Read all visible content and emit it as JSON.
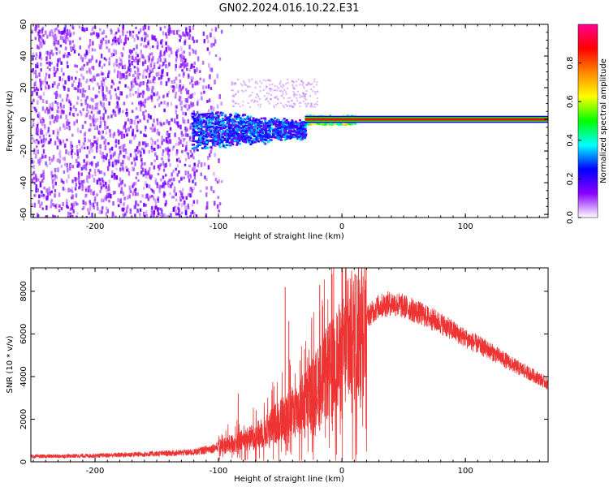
{
  "title": "GN02.2024.016.10.22.E31",
  "chart_data": [
    {
      "type": "heatmap",
      "xlabel": "Height of straight line (km)",
      "ylabel": "Frequency (Hz)",
      "xlim": [
        -252,
        167
      ],
      "ylim": [
        -62,
        60
      ],
      "x_ticks": [
        -200,
        -100,
        0,
        100
      ],
      "y_ticks": [
        -60,
        -40,
        -20,
        0,
        20,
        40,
        60
      ],
      "grid": false,
      "colorbar": {
        "label": "Normalized spectral amplitude",
        "range": [
          0,
          1
        ],
        "ticks": [
          0.0,
          0.2,
          0.4,
          0.6,
          0.8
        ],
        "tick_labels": [
          "0.0",
          "0.2",
          "0.4",
          "0.6",
          "0.8"
        ],
        "colors": [
          "#ffffff",
          "#8a00ff",
          "#0000ff",
          "#00ffff",
          "#00ff00",
          "#ffff00",
          "#ff8800",
          "#ff0000",
          "#ff0090"
        ]
      },
      "regions": [
        {
          "x_range": [
            -252,
            -120
          ],
          "freq_range": [
            -62,
            60
          ],
          "amplitude": 0.05,
          "description_level": "noise"
        },
        {
          "x_range": [
            -120,
            -98
          ],
          "freq_range": [
            -62,
            60
          ],
          "amplitude": 0.02,
          "description_level": "sparse noise"
        },
        {
          "x_range": [
            -122,
            -30
          ],
          "freq_range": [
            -22,
            8
          ],
          "amplitude": 0.3,
          "description_level": "spread signal"
        },
        {
          "x_range": [
            -30,
            10
          ],
          "freq_range": [
            -4,
            4
          ],
          "amplitude": 0.55
        },
        {
          "x_range": [
            -30,
            167
          ],
          "freq_range": [
            -2,
            2
          ],
          "amplitude": 0.95
        }
      ]
    },
    {
      "type": "line",
      "xlabel": "Height of straight line (km)",
      "ylabel": "SNR (10 * v/v)",
      "xlim": [
        -252,
        167
      ],
      "ylim": [
        0,
        9100
      ],
      "x_ticks": [
        -200,
        -100,
        0,
        100
      ],
      "y_ticks": [
        0,
        2000,
        4000,
        6000,
        8000
      ],
      "grid": false,
      "series": [
        {
          "color": "#ee3333",
          "x": [
            -252,
            -200,
            -150,
            -120,
            -100,
            -85,
            -70,
            -60,
            -50,
            -40,
            -30,
            -20,
            -10,
            0,
            10,
            20,
            30,
            40,
            50,
            60,
            80,
            100,
            120,
            140,
            160,
            167
          ],
          "y": [
            250,
            290,
            380,
            450,
            700,
            900,
            1200,
            1500,
            2000,
            2300,
            2800,
            3500,
            4300,
            5000,
            5900,
            6800,
            7300,
            7450,
            7300,
            7050,
            6500,
            5800,
            5200,
            4500,
            3900,
            3650
          ],
          "spikes": [
            {
              "x": -84,
              "y": 3200
            },
            {
              "x": -46,
              "y": 8200
            },
            {
              "x": -43,
              "y": 6600
            },
            {
              "x": -30,
              "y": 4000
            },
            {
              "x": -18,
              "y": 8300
            },
            {
              "x": -8,
              "y": 8800
            },
            {
              "x": 0,
              "y": 9100
            },
            {
              "x": 8,
              "y": 8300
            },
            {
              "x": 15,
              "y": 7900
            }
          ]
        }
      ]
    }
  ]
}
